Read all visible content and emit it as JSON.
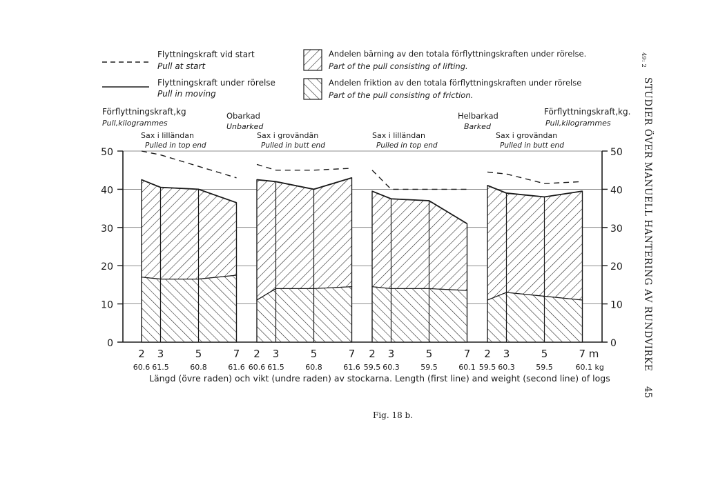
{
  "legend": {
    "dashed_label": "Flyttningskraft vid start",
    "dashed_label_en": "Pull at start",
    "solid_label": "Flyttningskraft under rörelse",
    "solid_label_en": "Pull in moving",
    "lifting_label": "Andelen bärning av den totala förflyttningskraften under rörelse.",
    "lifting_label_en": "Part of the pull consisting of lifting.",
    "friction_label": "Andelen friktion av den totala förflyttningskraften under rörelse",
    "friction_label_en": "Part of the pull consisting of friction."
  },
  "headers": {
    "left_axis_title": "Förflyttningskraft,kg",
    "left_axis_title_en": "Pull,kilogrammes",
    "right_axis_title": "Förflyttningskraft,kg.",
    "right_axis_title_en": "Pull,kilogrammes",
    "unbarked": "Obarkad",
    "unbarked_en": "Unbarked",
    "barked": "Helbarkad",
    "barked_en": "Barked"
  },
  "page": {
    "side_text": "STUDIER ÖVER MANUELL HANTERING AV RUNDVIRKE",
    "page_number": "45",
    "corner_mark": "49: 2",
    "caption": "Fig. 18 b."
  },
  "chart_data": {
    "type": "area",
    "x_label": "Längd (övre raden) och vikt (undre raden) av stockarna. Length (first line) and weight (second line) of logs",
    "x_unit": "m",
    "weight_unit": "kg",
    "ylim": [
      0,
      50
    ],
    "y_ticks": [
      0,
      10,
      20,
      30,
      40,
      50
    ],
    "groups": [
      {
        "label": "Sax i lilländan",
        "label_en": "Pulled in top end",
        "lengths": [
          2,
          3,
          5,
          7
        ],
        "length_labels": [
          "2",
          "3",
          "5",
          "7"
        ],
        "weights": [
          "60.6",
          "61.5",
          "60.8",
          "61.6"
        ],
        "pull_at_start": [
          50,
          49,
          46,
          43
        ],
        "pull_in_moving": [
          42.5,
          40.5,
          40,
          36.5
        ],
        "friction_part": [
          17,
          16.5,
          16.5,
          17.5
        ]
      },
      {
        "label": "Sax i grovändän",
        "label_en": "Pulled in butt end",
        "lengths": [
          2,
          3,
          5,
          7
        ],
        "length_labels": [
          "2",
          "3",
          "5",
          "7"
        ],
        "weights": [
          "60.6",
          "61.5",
          "60.8",
          "61.6"
        ],
        "pull_at_start": [
          46.5,
          45,
          45,
          45.5
        ],
        "pull_in_moving": [
          42.5,
          42,
          40,
          43
        ],
        "friction_part": [
          11,
          14,
          14,
          14.5
        ]
      },
      {
        "label": "Sax i lilländan",
        "label_en": "Pulled in top end",
        "lengths": [
          2,
          3,
          5,
          7
        ],
        "length_labels": [
          "2",
          "3",
          "5",
          "7"
        ],
        "weights": [
          "59.5",
          "60.3",
          "59.5",
          "60.1"
        ],
        "pull_at_start": [
          45,
          40,
          40,
          40
        ],
        "pull_in_moving": [
          39.5,
          37.5,
          37,
          31
        ],
        "friction_part": [
          14.5,
          14,
          14,
          13.5
        ]
      },
      {
        "label": "Sax i grovändan",
        "label_en": "Pulled in butt end",
        "lengths": [
          2,
          3,
          5,
          7
        ],
        "length_labels": [
          "2",
          "3",
          "5",
          "7"
        ],
        "weights": [
          "59.5",
          "60.3",
          "59.5",
          "60.1"
        ],
        "pull_at_start": [
          44.5,
          44,
          41.5,
          42
        ],
        "pull_in_moving": [
          41,
          39,
          38,
          39.5
        ],
        "friction_part": [
          11,
          13,
          12,
          11
        ]
      }
    ],
    "last_length_label": "7 m",
    "last_weight_label": "60.1 kg"
  }
}
